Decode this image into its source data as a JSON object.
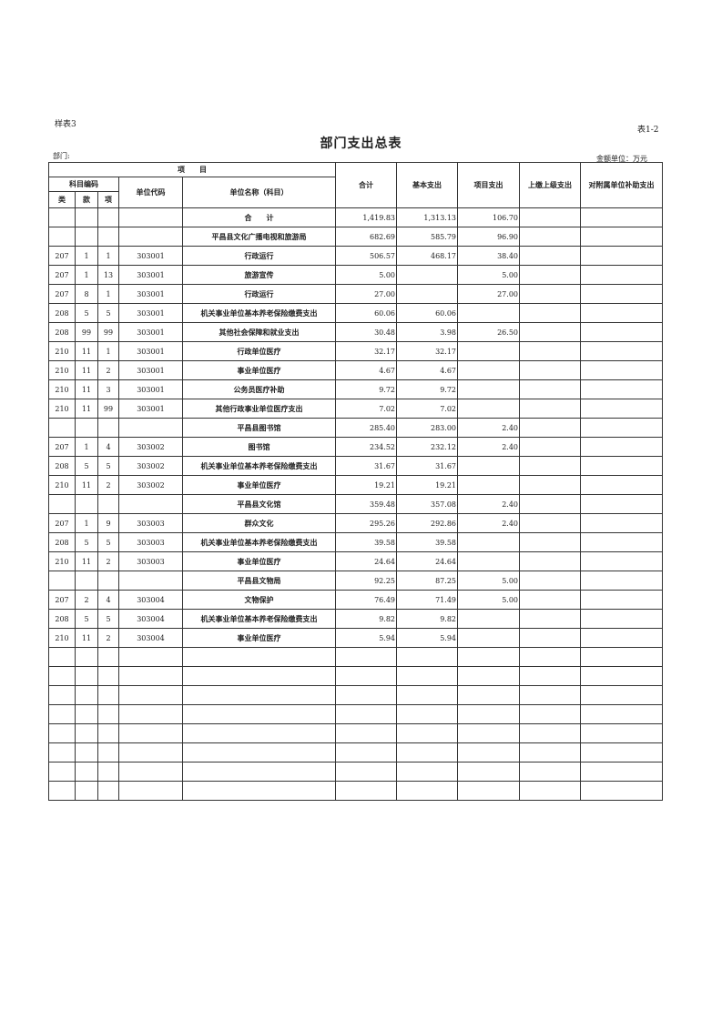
{
  "form_no": "样表3",
  "table_no": "表1-2",
  "title": "部门支出总表",
  "dept_label": "部门:",
  "unit_label": "金额单位：万元",
  "headers": {
    "item": "项　　目",
    "subject_code": "科目编码",
    "lei": "类",
    "kuan": "款",
    "xiang": "项",
    "unit_code": "单位代码",
    "unit_name": "单位名称（科目）",
    "total": "合计",
    "basic": "基本支出",
    "project": "项目支出",
    "upper": "上缴上级支出",
    "subsidy": "对附属单位补助支出"
  },
  "rows": [
    {
      "lei": "",
      "kuan": "",
      "xiang": "",
      "code": "",
      "name": "合　　计",
      "total": "1,419.83",
      "basic": "1,313.13",
      "project": "106.70",
      "upper": "",
      "subsidy": ""
    },
    {
      "lei": "",
      "kuan": "",
      "xiang": "",
      "code": "",
      "name": "平昌县文化广播电视和旅游局",
      "total": "682.69",
      "basic": "585.79",
      "project": "96.90",
      "upper": "",
      "subsidy": ""
    },
    {
      "lei": "207",
      "kuan": "1",
      "xiang": "1",
      "code": "303001",
      "name": "行政运行",
      "total": "506.57",
      "basic": "468.17",
      "project": "38.40",
      "upper": "",
      "subsidy": ""
    },
    {
      "lei": "207",
      "kuan": "1",
      "xiang": "13",
      "code": "303001",
      "name": "旅游宣传",
      "total": "5.00",
      "basic": "",
      "project": "5.00",
      "upper": "",
      "subsidy": ""
    },
    {
      "lei": "207",
      "kuan": "8",
      "xiang": "1",
      "code": "303001",
      "name": "行政运行",
      "total": "27.00",
      "basic": "",
      "project": "27.00",
      "upper": "",
      "subsidy": ""
    },
    {
      "lei": "208",
      "kuan": "5",
      "xiang": "5",
      "code": "303001",
      "name": "机关事业单位基本养老保险缴费支出",
      "total": "60.06",
      "basic": "60.06",
      "project": "",
      "upper": "",
      "subsidy": ""
    },
    {
      "lei": "208",
      "kuan": "99",
      "xiang": "99",
      "code": "303001",
      "name": "其他社会保障和就业支出",
      "total": "30.48",
      "basic": "3.98",
      "project": "26.50",
      "upper": "",
      "subsidy": ""
    },
    {
      "lei": "210",
      "kuan": "11",
      "xiang": "1",
      "code": "303001",
      "name": "行政单位医疗",
      "total": "32.17",
      "basic": "32.17",
      "project": "",
      "upper": "",
      "subsidy": ""
    },
    {
      "lei": "210",
      "kuan": "11",
      "xiang": "2",
      "code": "303001",
      "name": "事业单位医疗",
      "total": "4.67",
      "basic": "4.67",
      "project": "",
      "upper": "",
      "subsidy": ""
    },
    {
      "lei": "210",
      "kuan": "11",
      "xiang": "3",
      "code": "303001",
      "name": "公务员医疗补助",
      "total": "9.72",
      "basic": "9.72",
      "project": "",
      "upper": "",
      "subsidy": ""
    },
    {
      "lei": "210",
      "kuan": "11",
      "xiang": "99",
      "code": "303001",
      "name": "其他行政事业单位医疗支出",
      "total": "7.02",
      "basic": "7.02",
      "project": "",
      "upper": "",
      "subsidy": ""
    },
    {
      "lei": "",
      "kuan": "",
      "xiang": "",
      "code": "",
      "name": "平昌县图书馆",
      "total": "285.40",
      "basic": "283.00",
      "project": "2.40",
      "upper": "",
      "subsidy": ""
    },
    {
      "lei": "207",
      "kuan": "1",
      "xiang": "4",
      "code": "303002",
      "name": "图书馆",
      "total": "234.52",
      "basic": "232.12",
      "project": "2.40",
      "upper": "",
      "subsidy": ""
    },
    {
      "lei": "208",
      "kuan": "5",
      "xiang": "5",
      "code": "303002",
      "name": "机关事业单位基本养老保险缴费支出",
      "total": "31.67",
      "basic": "31.67",
      "project": "",
      "upper": "",
      "subsidy": ""
    },
    {
      "lei": "210",
      "kuan": "11",
      "xiang": "2",
      "code": "303002",
      "name": "事业单位医疗",
      "total": "19.21",
      "basic": "19.21",
      "project": "",
      "upper": "",
      "subsidy": ""
    },
    {
      "lei": "",
      "kuan": "",
      "xiang": "",
      "code": "",
      "name": "平昌县文化馆",
      "total": "359.48",
      "basic": "357.08",
      "project": "2.40",
      "upper": "",
      "subsidy": ""
    },
    {
      "lei": "207",
      "kuan": "1",
      "xiang": "9",
      "code": "303003",
      "name": "群众文化",
      "total": "295.26",
      "basic": "292.86",
      "project": "2.40",
      "upper": "",
      "subsidy": ""
    },
    {
      "lei": "208",
      "kuan": "5",
      "xiang": "5",
      "code": "303003",
      "name": "机关事业单位基本养老保险缴费支出",
      "total": "39.58",
      "basic": "39.58",
      "project": "",
      "upper": "",
      "subsidy": ""
    },
    {
      "lei": "210",
      "kuan": "11",
      "xiang": "2",
      "code": "303003",
      "name": "事业单位医疗",
      "total": "24.64",
      "basic": "24.64",
      "project": "",
      "upper": "",
      "subsidy": ""
    },
    {
      "lei": "",
      "kuan": "",
      "xiang": "",
      "code": "",
      "name": "平昌县文物局",
      "total": "92.25",
      "basic": "87.25",
      "project": "5.00",
      "upper": "",
      "subsidy": ""
    },
    {
      "lei": "207",
      "kuan": "2",
      "xiang": "4",
      "code": "303004",
      "name": "文物保护",
      "total": "76.49",
      "basic": "71.49",
      "project": "5.00",
      "upper": "",
      "subsidy": ""
    },
    {
      "lei": "208",
      "kuan": "5",
      "xiang": "5",
      "code": "303004",
      "name": "机关事业单位基本养老保险缴费支出",
      "total": "9.82",
      "basic": "9.82",
      "project": "",
      "upper": "",
      "subsidy": ""
    },
    {
      "lei": "210",
      "kuan": "11",
      "xiang": "2",
      "code": "303004",
      "name": "事业单位医疗",
      "total": "5.94",
      "basic": "5.94",
      "project": "",
      "upper": "",
      "subsidy": ""
    }
  ]
}
